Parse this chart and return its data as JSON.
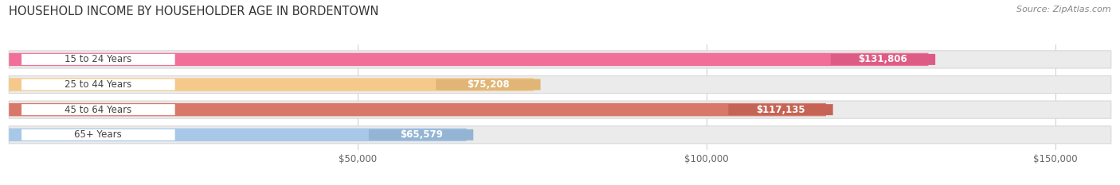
{
  "title": "HOUSEHOLD INCOME BY HOUSEHOLDER AGE IN BORDENTOWN",
  "source": "Source: ZipAtlas.com",
  "categories": [
    "15 to 24 Years",
    "25 to 44 Years",
    "45 to 64 Years",
    "65+ Years"
  ],
  "values": [
    131806,
    75208,
    117135,
    65579
  ],
  "bar_colors": [
    "#f0709a",
    "#f5c98a",
    "#d97868",
    "#a8c8e8"
  ],
  "bar_bg_color": "#ebebeb",
  "bar_bg_edge": "#d8d8d8",
  "x_tick_labels": [
    "$50,000",
    "$100,000",
    "$150,000"
  ],
  "x_ticks": [
    50000,
    100000,
    150000
  ],
  "xlim": [
    0,
    158000
  ],
  "value_labels": [
    "$131,806",
    "$75,208",
    "$117,135",
    "$65,579"
  ],
  "figsize": [
    14.06,
    2.33
  ],
  "dpi": 100
}
